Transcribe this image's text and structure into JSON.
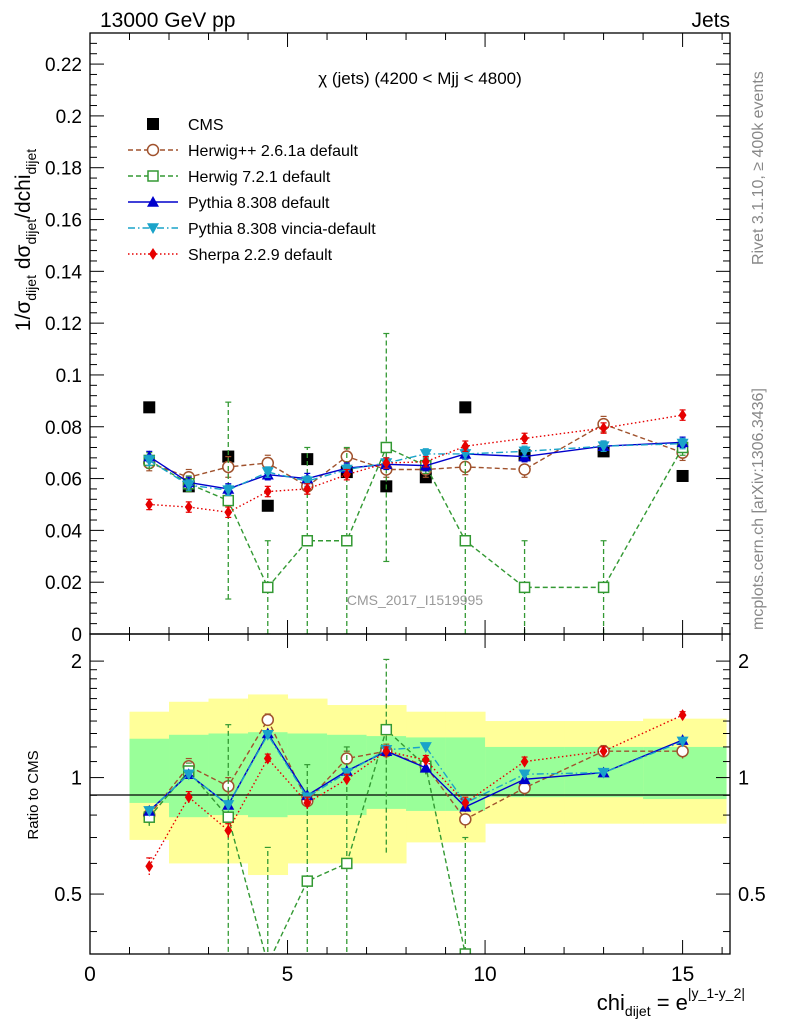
{
  "chart_data": [
    {
      "id": "main",
      "type": "scatter",
      "title": "χ (jets) (4200 < Mjj < 4800)",
      "header_left": "13000 GeV pp",
      "header_right": "Jets",
      "ylabel": {
        "base": "1/σ",
        "sub1": "dijet",
        "mid": " dσ",
        "sub2": "dijet",
        "tail": "/dchi",
        "sub3": "dijet"
      },
      "ylim": [
        0,
        0.232
      ],
      "yticks": [
        0,
        0.02,
        0.04,
        0.06,
        0.08,
        0.1,
        0.12,
        0.14,
        0.16,
        0.18,
        0.2,
        0.22
      ],
      "ytick_labels": [
        "0",
        "0.02",
        "0.04",
        "0.06",
        "0.08",
        "0.1",
        "0.12",
        "0.14",
        "0.16",
        "0.18",
        "0.2",
        "0.22"
      ],
      "xlim": [
        0,
        16.2
      ],
      "watermark": "CMS_2017_I1519995",
      "side_label_top": "Rivet 3.1.10, ≥ 400k events",
      "side_label_bottom": "mcplots.cern.ch [arXiv:1306.3436]",
      "x": [
        1.5,
        2.5,
        3.5,
        4.5,
        5.5,
        6.5,
        7.5,
        8.5,
        9.5,
        11.0,
        13.0,
        15.0
      ],
      "series": [
        {
          "name": "CMS",
          "color": "#000000",
          "marker": "square-filled",
          "line": "none",
          "values": [
            0.0875,
            0.057,
            0.0685,
            0.0495,
            0.0675,
            0.0625,
            0.057,
            0.0605,
            0.0875,
            0.069,
            0.0705,
            0.061
          ]
        },
        {
          "name": "Herwig++ 2.6.1a default",
          "color": "#a0522d",
          "marker": "circle-open",
          "line": "dashed",
          "values": [
            0.066,
            0.0605,
            0.0645,
            0.066,
            0.057,
            0.0685,
            0.0635,
            0.0635,
            0.0645,
            0.0635,
            0.081,
            0.07
          ],
          "errors": [
            0.003,
            0.003,
            0.004,
            0.003,
            0.003,
            0.003,
            0.003,
            0.003,
            0.003,
            0.003,
            0.003,
            0.003
          ]
        },
        {
          "name": "Herwig 7.2.1 default",
          "color": "#339933",
          "marker": "square-open",
          "line": "dashed",
          "values": [
            0.067,
            0.058,
            0.0515,
            0.018,
            0.036,
            0.036,
            0.072,
            0.065,
            0.036,
            0.018,
            0.018,
            0.072
          ],
          "errors": [
            0.003,
            0.003,
            0.038,
            0.018,
            0.036,
            0.036,
            0.044,
            0.003,
            0.036,
            0.018,
            0.018,
            0.003
          ]
        },
        {
          "name": "Pythia 8.308 default",
          "color": "#0000cc",
          "marker": "triangle-up",
          "line": "solid",
          "values": [
            0.0685,
            0.0585,
            0.056,
            0.0615,
            0.06,
            0.064,
            0.0655,
            0.065,
            0.0695,
            0.0685,
            0.0725,
            0.074
          ],
          "errors": [
            0.002,
            0.002,
            0.002,
            0.002,
            0.002,
            0.002,
            0.002,
            0.002,
            0.002,
            0.002,
            0.002,
            0.002
          ]
        },
        {
          "name": "Pythia 8.308 vincia-default",
          "color": "#1aa3c9",
          "marker": "triangle-down",
          "line": "dashdot",
          "values": [
            0.067,
            0.0575,
            0.0555,
            0.0625,
            0.059,
            0.0635,
            0.066,
            0.0695,
            0.0695,
            0.0705,
            0.0725,
            0.0735
          ],
          "errors": [
            0.002,
            0.002,
            0.002,
            0.002,
            0.002,
            0.002,
            0.002,
            0.002,
            0.002,
            0.002,
            0.002,
            0.002
          ]
        },
        {
          "name": "Sherpa 2.2.9 default",
          "color": "#e60000",
          "marker": "diamond",
          "line": "dotted",
          "values": [
            0.05,
            0.049,
            0.047,
            0.055,
            0.056,
            0.0615,
            0.066,
            0.0665,
            0.0725,
            0.0755,
            0.0795,
            0.0845
          ],
          "errors": [
            0.002,
            0.002,
            0.002,
            0.002,
            0.002,
            0.002,
            0.002,
            0.002,
            0.002,
            0.002,
            0.002,
            0.002
          ]
        }
      ]
    },
    {
      "id": "ratio",
      "type": "scatter",
      "ylabel": "Ratio to CMS",
      "ylim": [
        0.35,
        2.35
      ],
      "yscale": "log",
      "yticks": [
        0.5,
        1,
        2
      ],
      "ytick_labels": [
        "0.5",
        "1",
        "2"
      ],
      "xlim": [
        0,
        16.2
      ],
      "xticks": [
        0,
        5,
        10,
        15
      ],
      "xtick_labels": [
        "0",
        "5",
        "10",
        "15"
      ],
      "xlabel": {
        "base": "chi",
        "sub": "dijet",
        "mid": " = e",
        "sup": "|y_1-y_2|"
      },
      "bins": [
        [
          1,
          2
        ],
        [
          2,
          3
        ],
        [
          3,
          4
        ],
        [
          4,
          5
        ],
        [
          5,
          6
        ],
        [
          6,
          7
        ],
        [
          7,
          8
        ],
        [
          8,
          9
        ],
        [
          9,
          10
        ],
        [
          10,
          12
        ],
        [
          12,
          14
        ],
        [
          14,
          16.1
        ]
      ],
      "band_outer": [
        [
          0.69,
          1.48
        ],
        [
          0.6,
          1.57
        ],
        [
          0.6,
          1.6
        ],
        [
          0.56,
          1.64
        ],
        [
          0.6,
          1.6
        ],
        [
          0.6,
          1.54
        ],
        [
          0.6,
          1.54
        ],
        [
          0.68,
          1.48
        ],
        [
          0.68,
          1.48
        ],
        [
          0.76,
          1.4
        ],
        [
          0.76,
          1.4
        ],
        [
          0.76,
          1.42
        ]
      ],
      "band_inner": [
        [
          0.86,
          1.26
        ],
        [
          0.79,
          1.29
        ],
        [
          0.8,
          1.3
        ],
        [
          0.79,
          1.31
        ],
        [
          0.8,
          1.3
        ],
        [
          0.8,
          1.29
        ],
        [
          0.83,
          1.28
        ],
        [
          0.82,
          1.27
        ],
        [
          0.82,
          1.27
        ],
        [
          0.89,
          1.2
        ],
        [
          0.89,
          1.2
        ],
        [
          0.88,
          1.2
        ]
      ],
      "series": [
        {
          "name": "Herwig++ 2.6.1a default",
          "values": [
            0.8,
            1.07,
            0.95,
            1.41,
            0.87,
            1.12,
            1.17,
            1.07,
            0.78,
            0.94,
            1.17,
            1.17
          ],
          "errors": [
            0.04,
            0.05,
            0.05,
            0.05,
            0.04,
            0.05,
            0.05,
            0.05,
            0.04,
            0.04,
            0.04,
            0.05
          ]
        },
        {
          "name": "Herwig 7.2.1 default",
          "values": [
            0.79,
            1.04,
            0.79,
            0.33,
            0.54,
            0.6,
            1.33,
            1.07,
            0.35,
            null,
            null,
            null
          ],
          "errors": [
            0.04,
            0.05,
            0.58,
            0.33,
            0.54,
            0.6,
            0.69,
            0.05,
            0.35,
            null,
            null,
            null
          ]
        },
        {
          "name": "Pythia 8.308 default",
          "values": [
            0.82,
            1.02,
            0.85,
            1.3,
            0.9,
            1.04,
            1.17,
            1.06,
            0.84,
            0.99,
            1.03,
            1.25
          ]
        },
        {
          "name": "Pythia 8.308 vincia-default",
          "values": [
            0.82,
            1.02,
            0.85,
            1.29,
            0.89,
            1.03,
            1.18,
            1.2,
            0.86,
            1.02,
            1.03,
            1.24
          ]
        },
        {
          "name": "Sherpa 2.2.9 default",
          "values": [
            0.59,
            0.89,
            0.73,
            1.12,
            0.86,
            0.99,
            1.17,
            1.11,
            0.86,
            1.1,
            1.17,
            1.45
          ],
          "errors": [
            0.03,
            0.03,
            0.03,
            0.03,
            0.03,
            0.03,
            0.03,
            0.03,
            0.03,
            0.03,
            0.03,
            0.03
          ]
        }
      ]
    }
  ]
}
